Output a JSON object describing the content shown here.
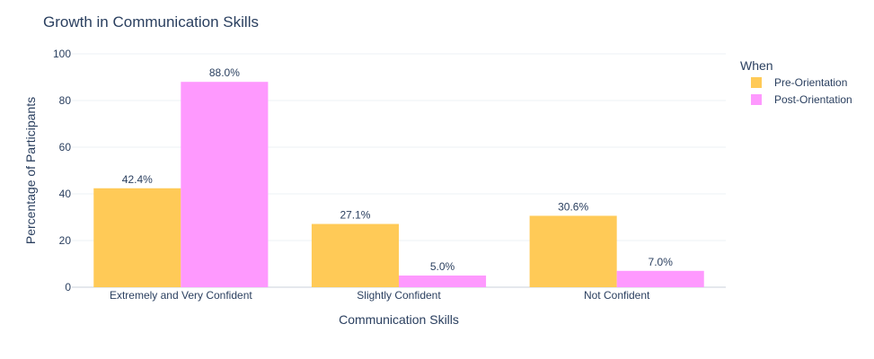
{
  "chart_data": {
    "type": "bar",
    "title": "Growth in Communication Skills",
    "xlabel": "Communication Skills",
    "ylabel": "Percentage of Participants",
    "ylim": [
      0,
      100
    ],
    "yticks": [
      0,
      20,
      40,
      60,
      80,
      100
    ],
    "grid": true,
    "categories": [
      "Extremely and Very Confident",
      "Slightly Confident",
      "Not Confident"
    ],
    "legend": {
      "title": "When",
      "placement": "right"
    },
    "series": [
      {
        "name": "Pre-Orientation",
        "color": "#FFCA57",
        "values": [
          42.4,
          27.1,
          30.6
        ],
        "labels": [
          "42.4%",
          "27.1%",
          "30.6%"
        ]
      },
      {
        "name": "Post-Orientation",
        "color": "#FE99FE",
        "values": [
          88.0,
          5.0,
          7.0
        ],
        "labels": [
          "88.0%",
          "5.0%",
          "7.0%"
        ]
      }
    ]
  }
}
